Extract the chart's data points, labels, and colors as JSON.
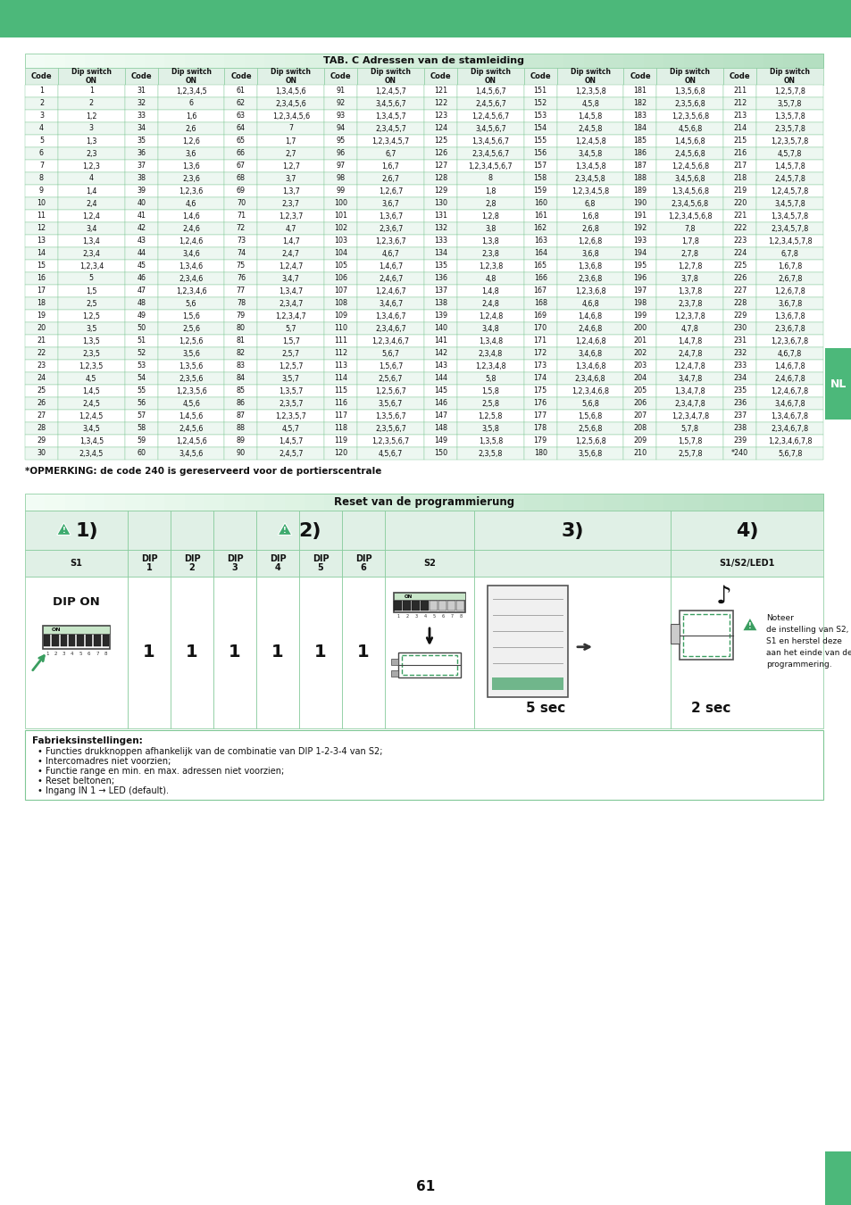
{
  "title_table": "TAB. C Adressen van de stamleiding",
  "title_reset": "Reset van de programmierung",
  "note_text": "*OPMERKING: de code 240 is gereserveerd voor de portierscentrale",
  "fab_title": "Fabrieksinstellingen:",
  "fab_items": [
    "Functies drukknoppen afhankelijk van de combinatie van DIP 1-2-3-4 van S2;",
    "Intercomadres niet voorzien;",
    "Functie range en min. en max. adressen niet voorzien;",
    "Reset beltonen;",
    "Ingang IN 1 → LED (default)."
  ],
  "page_number": "61",
  "green_top": "#4cb87a",
  "green_header_grad_left": "#d4edd9",
  "green_header_solid": "#b2d9be",
  "green_light": "#e0f0e6",
  "green_border": "#80c896",
  "green_dark": "#3a9e60",
  "green_strip": "#4cb87a",
  "table_data": [
    [
      "1",
      "1",
      "31",
      "1,2,3,4,5",
      "61",
      "1,3,4,5,6",
      "91",
      "1,2,4,5,7",
      "121",
      "1,4,5,6,7",
      "151",
      "1,2,3,5,8",
      "181",
      "1,3,5,6,8",
      "211",
      "1,2,5,7,8"
    ],
    [
      "2",
      "2",
      "32",
      "6",
      "62",
      "2,3,4,5,6",
      "92",
      "3,4,5,6,7",
      "122",
      "2,4,5,6,7",
      "152",
      "4,5,8",
      "182",
      "2,3,5,6,8",
      "212",
      "3,5,7,8"
    ],
    [
      "3",
      "1,2",
      "33",
      "1,6",
      "63",
      "1,2,3,4,5,6",
      "93",
      "1,3,4,5,7",
      "123",
      "1,2,4,5,6,7",
      "153",
      "1,4,5,8",
      "183",
      "1,2,3,5,6,8",
      "213",
      "1,3,5,7,8"
    ],
    [
      "4",
      "3",
      "34",
      "2,6",
      "64",
      "7",
      "94",
      "2,3,4,5,7",
      "124",
      "3,4,5,6,7",
      "154",
      "2,4,5,8",
      "184",
      "4,5,6,8",
      "214",
      "2,3,5,7,8"
    ],
    [
      "5",
      "1,3",
      "35",
      "1,2,6",
      "65",
      "1,7",
      "95",
      "1,2,3,4,5,7",
      "125",
      "1,3,4,5,6,7",
      "155",
      "1,2,4,5,8",
      "185",
      "1,4,5,6,8",
      "215",
      "1,2,3,5,7,8"
    ],
    [
      "6",
      "2,3",
      "36",
      "3,6",
      "66",
      "2,7",
      "96",
      "6,7",
      "126",
      "2,3,4,5,6,7",
      "156",
      "3,4,5,8",
      "186",
      "2,4,5,6,8",
      "216",
      "4,5,7,8"
    ],
    [
      "7",
      "1,2,3",
      "37",
      "1,3,6",
      "67",
      "1,2,7",
      "97",
      "1,6,7",
      "127",
      "1,2,3,4,5,6,7",
      "157",
      "1,3,4,5,8",
      "187",
      "1,2,4,5,6,8",
      "217",
      "1,4,5,7,8"
    ],
    [
      "8",
      "4",
      "38",
      "2,3,6",
      "68",
      "3,7",
      "98",
      "2,6,7",
      "128",
      "8",
      "158",
      "2,3,4,5,8",
      "188",
      "3,4,5,6,8",
      "218",
      "2,4,5,7,8"
    ],
    [
      "9",
      "1,4",
      "39",
      "1,2,3,6",
      "69",
      "1,3,7",
      "99",
      "1,2,6,7",
      "129",
      "1,8",
      "159",
      "1,2,3,4,5,8",
      "189",
      "1,3,4,5,6,8",
      "219",
      "1,2,4,5,7,8"
    ],
    [
      "10",
      "2,4",
      "40",
      "4,6",
      "70",
      "2,3,7",
      "100",
      "3,6,7",
      "130",
      "2,8",
      "160",
      "6,8",
      "190",
      "2,3,4,5,6,8",
      "220",
      "3,4,5,7,8"
    ],
    [
      "11",
      "1,2,4",
      "41",
      "1,4,6",
      "71",
      "1,2,3,7",
      "101",
      "1,3,6,7",
      "131",
      "1,2,8",
      "161",
      "1,6,8",
      "191",
      "1,2,3,4,5,6,8",
      "221",
      "1,3,4,5,7,8"
    ],
    [
      "12",
      "3,4",
      "42",
      "2,4,6",
      "72",
      "4,7",
      "102",
      "2,3,6,7",
      "132",
      "3,8",
      "162",
      "2,6,8",
      "192",
      "7,8",
      "222",
      "2,3,4,5,7,8"
    ],
    [
      "13",
      "1,3,4",
      "43",
      "1,2,4,6",
      "73",
      "1,4,7",
      "103",
      "1,2,3,6,7",
      "133",
      "1,3,8",
      "163",
      "1,2,6,8",
      "193",
      "1,7,8",
      "223",
      "1,2,3,4,5,7,8"
    ],
    [
      "14",
      "2,3,4",
      "44",
      "3,4,6",
      "74",
      "2,4,7",
      "104",
      "4,6,7",
      "134",
      "2,3,8",
      "164",
      "3,6,8",
      "194",
      "2,7,8",
      "224",
      "6,7,8"
    ],
    [
      "15",
      "1,2,3,4",
      "45",
      "1,3,4,6",
      "75",
      "1,2,4,7",
      "105",
      "1,4,6,7",
      "135",
      "1,2,3,8",
      "165",
      "1,3,6,8",
      "195",
      "1,2,7,8",
      "225",
      "1,6,7,8"
    ],
    [
      "16",
      "5",
      "46",
      "2,3,4,6",
      "76",
      "3,4,7",
      "106",
      "2,4,6,7",
      "136",
      "4,8",
      "166",
      "2,3,6,8",
      "196",
      "3,7,8",
      "226",
      "2,6,7,8"
    ],
    [
      "17",
      "1,5",
      "47",
      "1,2,3,4,6",
      "77",
      "1,3,4,7",
      "107",
      "1,2,4,6,7",
      "137",
      "1,4,8",
      "167",
      "1,2,3,6,8",
      "197",
      "1,3,7,8",
      "227",
      "1,2,6,7,8"
    ],
    [
      "18",
      "2,5",
      "48",
      "5,6",
      "78",
      "2,3,4,7",
      "108",
      "3,4,6,7",
      "138",
      "2,4,8",
      "168",
      "4,6,8",
      "198",
      "2,3,7,8",
      "228",
      "3,6,7,8"
    ],
    [
      "19",
      "1,2,5",
      "49",
      "1,5,6",
      "79",
      "1,2,3,4,7",
      "109",
      "1,3,4,6,7",
      "139",
      "1,2,4,8",
      "169",
      "1,4,6,8",
      "199",
      "1,2,3,7,8",
      "229",
      "1,3,6,7,8"
    ],
    [
      "20",
      "3,5",
      "50",
      "2,5,6",
      "80",
      "5,7",
      "110",
      "2,3,4,6,7",
      "140",
      "3,4,8",
      "170",
      "2,4,6,8",
      "200",
      "4,7,8",
      "230",
      "2,3,6,7,8"
    ],
    [
      "21",
      "1,3,5",
      "51",
      "1,2,5,6",
      "81",
      "1,5,7",
      "111",
      "1,2,3,4,6,7",
      "141",
      "1,3,4,8",
      "171",
      "1,2,4,6,8",
      "201",
      "1,4,7,8",
      "231",
      "1,2,3,6,7,8"
    ],
    [
      "22",
      "2,3,5",
      "52",
      "3,5,6",
      "82",
      "2,5,7",
      "112",
      "5,6,7",
      "142",
      "2,3,4,8",
      "172",
      "3,4,6,8",
      "202",
      "2,4,7,8",
      "232",
      "4,6,7,8"
    ],
    [
      "23",
      "1,2,3,5",
      "53",
      "1,3,5,6",
      "83",
      "1,2,5,7",
      "113",
      "1,5,6,7",
      "143",
      "1,2,3,4,8",
      "173",
      "1,3,4,6,8",
      "203",
      "1,2,4,7,8",
      "233",
      "1,4,6,7,8"
    ],
    [
      "24",
      "4,5",
      "54",
      "2,3,5,6",
      "84",
      "3,5,7",
      "114",
      "2,5,6,7",
      "144",
      "5,8",
      "174",
      "2,3,4,6,8",
      "204",
      "3,4,7,8",
      "234",
      "2,4,6,7,8"
    ],
    [
      "25",
      "1,4,5",
      "55",
      "1,2,3,5,6",
      "85",
      "1,3,5,7",
      "115",
      "1,2,5,6,7",
      "145",
      "1,5,8",
      "175",
      "1,2,3,4,6,8",
      "205",
      "1,3,4,7,8",
      "235",
      "1,2,4,6,7,8"
    ],
    [
      "26",
      "2,4,5",
      "56",
      "4,5,6",
      "86",
      "2,3,5,7",
      "116",
      "3,5,6,7",
      "146",
      "2,5,8",
      "176",
      "5,6,8",
      "206",
      "2,3,4,7,8",
      "236",
      "3,4,6,7,8"
    ],
    [
      "27",
      "1,2,4,5",
      "57",
      "1,4,5,6",
      "87",
      "1,2,3,5,7",
      "117",
      "1,3,5,6,7",
      "147",
      "1,2,5,8",
      "177",
      "1,5,6,8",
      "207",
      "1,2,3,4,7,8",
      "237",
      "1,3,4,6,7,8"
    ],
    [
      "28",
      "3,4,5",
      "58",
      "2,4,5,6",
      "88",
      "4,5,7",
      "118",
      "2,3,5,6,7",
      "148",
      "3,5,8",
      "178",
      "2,5,6,8",
      "208",
      "5,7,8",
      "238",
      "2,3,4,6,7,8"
    ],
    [
      "29",
      "1,3,4,5",
      "59",
      "1,2,4,5,6",
      "89",
      "1,4,5,7",
      "119",
      "1,2,3,5,6,7",
      "149",
      "1,3,5,8",
      "179",
      "1,2,5,6,8",
      "209",
      "1,5,7,8",
      "239",
      "1,2,3,4,6,7,8"
    ],
    [
      "30",
      "2,3,4,5",
      "60",
      "3,4,5,6",
      "90",
      "2,4,5,7",
      "120",
      "4,5,6,7",
      "150",
      "2,3,5,8",
      "180",
      "3,5,6,8",
      "210",
      "2,5,7,8",
      "*240",
      "5,6,7,8"
    ]
  ]
}
